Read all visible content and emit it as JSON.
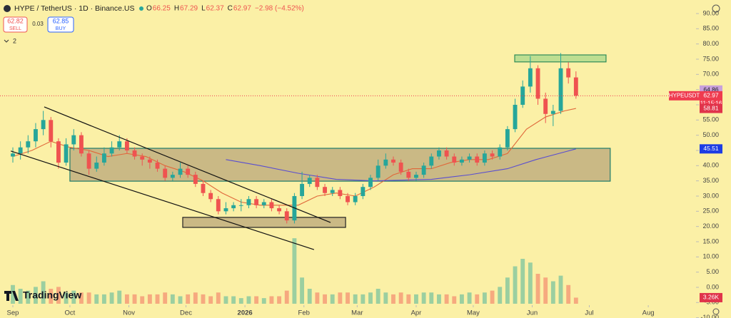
{
  "header": {
    "symbol": "HYPE / TetherUS · 1D · Binance.US",
    "ohlc": [
      {
        "key": "O",
        "value": "66.25"
      },
      {
        "key": "H",
        "value": "67.29"
      },
      {
        "key": "L",
        "value": "62.37"
      },
      {
        "key": "C",
        "value": "62.97"
      }
    ],
    "change": "−2.98 (−4.52%)"
  },
  "order_panel": {
    "sell_price": "62.82",
    "sell": "SELL",
    "spread": "0.03",
    "buy_price": "62.85",
    "buy": "BUY",
    "indicators": "2"
  },
  "logo": "TradingView",
  "chart_data": {
    "type": "candlestick",
    "xlim": [
      -6.75,
      359.1
    ],
    "ylim": [
      -10.08,
      94.45
    ],
    "xticks": [
      {
        "value": 0,
        "label": "Sep"
      },
      {
        "value": 30,
        "label": "Oct"
      },
      {
        "value": 61,
        "label": "Nov"
      },
      {
        "value": 91,
        "label": "Dec"
      },
      {
        "value": 122,
        "label": "2026"
      },
      {
        "value": 153,
        "label": "Feb"
      },
      {
        "value": 181,
        "label": "Mar"
      },
      {
        "value": 212,
        "label": "Apr"
      },
      {
        "value": 242,
        "label": "May"
      },
      {
        "value": 273,
        "label": "Jun"
      },
      {
        "value": 303,
        "label": "Jul"
      },
      {
        "value": 334,
        "label": "Aug"
      }
    ],
    "yticks": [
      {
        "value": 90,
        "label": "90.00"
      },
      {
        "value": 85,
        "label": "85.00"
      },
      {
        "value": 80,
        "label": "80.00"
      },
      {
        "value": 75,
        "label": "75.00"
      },
      {
        "value": 70,
        "label": "70.00"
      },
      {
        "value": 65,
        "label": "65.00"
      },
      {
        "value": 60,
        "label": "60.00"
      },
      {
        "value": 55,
        "label": "55.00"
      },
      {
        "value": 50,
        "label": "50.00"
      },
      {
        "value": 45,
        "label": "45.00"
      },
      {
        "value": 40,
        "label": "40.00"
      },
      {
        "value": 35,
        "label": "35.00"
      },
      {
        "value": 30,
        "label": "30.00"
      },
      {
        "value": 25,
        "label": "25.00"
      },
      {
        "value": 20,
        "label": "20.00"
      },
      {
        "value": 15,
        "label": "15.00"
      },
      {
        "value": 10,
        "label": "10.00"
      },
      {
        "value": 5,
        "label": "5.00"
      },
      {
        "value": 0,
        "label": "0.00"
      },
      {
        "value": -5,
        "label": "-5.00"
      },
      {
        "value": -10,
        "label": "-10.00"
      }
    ],
    "up_color": "#26a69a",
    "down_color": "#ef5350",
    "x": [
      0,
      4,
      8,
      12,
      16,
      20,
      24,
      28,
      32,
      36,
      40,
      44,
      48,
      52,
      56,
      60,
      64,
      68,
      72,
      76,
      80,
      84,
      88,
      92,
      96,
      100,
      104,
      108,
      112,
      116,
      120,
      124,
      128,
      132,
      136,
      140,
      144,
      148,
      152,
      156,
      160,
      164,
      168,
      172,
      176,
      180,
      184,
      188,
      192,
      196,
      200,
      204,
      208,
      212,
      216,
      220,
      224,
      228,
      232,
      236,
      240,
      244,
      248,
      252,
      256,
      260,
      264,
      268,
      272,
      276,
      280,
      284,
      288,
      292,
      296
    ],
    "open": [
      43,
      44,
      46,
      48,
      52,
      55,
      48,
      41,
      47,
      50,
      44,
      39,
      41,
      44,
      46,
      48,
      45,
      43,
      42,
      41,
      39,
      36,
      37,
      39,
      37,
      34,
      31,
      29,
      25,
      26,
      27,
      27,
      29,
      27,
      28,
      26,
      25,
      22,
      30,
      34,
      36,
      33,
      31,
      32,
      30,
      28,
      30,
      33,
      36,
      40,
      42,
      41,
      38,
      36,
      37,
      40,
      43,
      45,
      43,
      41,
      42,
      43,
      41,
      44,
      43,
      46,
      52,
      60,
      66,
      72,
      62,
      57,
      58,
      72,
      69
    ],
    "high": [
      46,
      48,
      50,
      54,
      58,
      56,
      49,
      49,
      52,
      51,
      45,
      43,
      46,
      48,
      50,
      49,
      46,
      44,
      43,
      42,
      40,
      38,
      41,
      40,
      38,
      35,
      32,
      30,
      28,
      28,
      29,
      30,
      30,
      29,
      29,
      27,
      26,
      31,
      38,
      37,
      37,
      34,
      33,
      33,
      31,
      31,
      34,
      37,
      42,
      44,
      43,
      42,
      39,
      38,
      41,
      44,
      46,
      46,
      44,
      43,
      44,
      44,
      45,
      45,
      47,
      53,
      62,
      68,
      76,
      73,
      64,
      60,
      77,
      74,
      71
    ],
    "low": [
      41,
      42,
      44,
      46,
      50,
      46,
      39,
      40,
      45,
      43,
      37,
      38,
      40,
      43,
      45,
      44,
      42,
      40,
      39,
      38,
      35,
      35,
      36,
      36,
      33,
      30,
      28,
      24,
      24,
      25,
      25,
      26,
      26,
      26,
      25,
      24,
      21,
      21,
      29,
      33,
      32,
      30,
      30,
      29,
      27,
      27,
      29,
      32,
      35,
      39,
      40,
      37,
      35,
      35,
      36,
      39,
      42,
      42,
      40,
      40,
      41,
      40,
      40,
      42,
      42,
      45,
      51,
      59,
      64,
      60,
      54,
      53,
      57,
      67,
      62
    ],
    "close": [
      44,
      46,
      48,
      52,
      55,
      48,
      41,
      47,
      50,
      44,
      39,
      41,
      44,
      46,
      48,
      45,
      43,
      42,
      41,
      39,
      36,
      37,
      39,
      37,
      34,
      31,
      29,
      25,
      26,
      27,
      27,
      29,
      27,
      28,
      26,
      25,
      22,
      30,
      34,
      36,
      33,
      31,
      32,
      30,
      28,
      30,
      33,
      36,
      40,
      42,
      41,
      38,
      36,
      37,
      40,
      43,
      45,
      43,
      41,
      42,
      43,
      41,
      44,
      43,
      46,
      52,
      60,
      66,
      72,
      62,
      57,
      58,
      72,
      69,
      63
    ],
    "volume": {
      "ylim": [
        0,
        40
      ],
      "values": [
        10,
        8,
        7,
        9,
        12,
        8,
        9,
        6,
        7,
        6,
        6,
        5,
        5,
        6,
        7,
        5,
        5,
        4,
        5,
        5,
        6,
        5,
        4,
        5,
        6,
        5,
        4,
        6,
        4,
        4,
        3,
        4,
        4,
        3,
        4,
        4,
        7,
        35,
        14,
        8,
        6,
        5,
        5,
        6,
        6,
        5,
        5,
        6,
        8,
        6,
        5,
        6,
        5,
        5,
        6,
        6,
        5,
        5,
        4,
        5,
        6,
        5,
        6,
        7,
        9,
        14,
        20,
        24,
        22,
        16,
        14,
        12,
        15,
        10,
        3.26
      ]
    },
    "lines": [
      {
        "color": "#e0683a",
        "x": [
          0,
          10,
          20,
          30,
          40,
          50,
          60,
          70,
          80,
          90,
          100,
          110,
          120,
          130,
          140,
          150,
          160,
          170,
          180,
          190,
          200,
          210,
          220,
          230,
          240,
          250,
          260,
          270,
          280,
          290,
          296
        ],
        "values": [
          43,
          45,
          48,
          46,
          45,
          43,
          44,
          43,
          40,
          38,
          35,
          31,
          28,
          27,
          27,
          27,
          30,
          31,
          30,
          33,
          37,
          39,
          39,
          41,
          42,
          42,
          44,
          52,
          56,
          58,
          58.81
        ]
      },
      {
        "color": "#5a4ed0",
        "x": [
          112,
          130,
          150,
          170,
          190,
          220,
          240,
          260,
          275,
          290,
          296
        ],
        "values": [
          42,
          40,
          37.5,
          35.5,
          35,
          35.5,
          37,
          39,
          42,
          44.5,
          45.51
        ]
      }
    ],
    "trend_lines": [
      {
        "x": [
          16.5,
          167
        ],
        "y": [
          59.3,
          21.3
        ]
      },
      {
        "x": [
          -1.1,
          158.3
        ],
        "y": [
          44.8,
          12.4
        ]
      }
    ],
    "boxes": [
      {
        "x": [
          30,
          314
        ],
        "y": [
          34.9,
          45.7
        ],
        "fill": "#b9a77a",
        "stroke": "#1d7a6a"
      },
      {
        "x": [
          89.3,
          174.9
        ],
        "y": [
          19.7,
          23
        ],
        "fill": "#b9a77a",
        "stroke": "#222222"
      },
      {
        "x": [
          263.8,
          311.8
        ],
        "y": [
          74.1,
          76.4
        ],
        "fill": "#a8d88a",
        "stroke": "#2e8b57"
      }
    ],
    "price_badges": [
      {
        "value": 64.86,
        "label": "64.86",
        "color": "#c9a0dc"
      },
      {
        "value": 62.97,
        "label": "62.97",
        "color": "#ef3b4f",
        "symbol": "HYPEUSDT",
        "timer": "11:15:16"
      },
      {
        "value": 58.81,
        "label": "58.81",
        "color": "#e0344b"
      },
      {
        "value": 45.51,
        "label": "45.51",
        "color": "#1e3de4"
      }
    ],
    "volume_badge": {
      "value": 3.26,
      "label": "3.26K",
      "color": "#e0344b"
    }
  }
}
